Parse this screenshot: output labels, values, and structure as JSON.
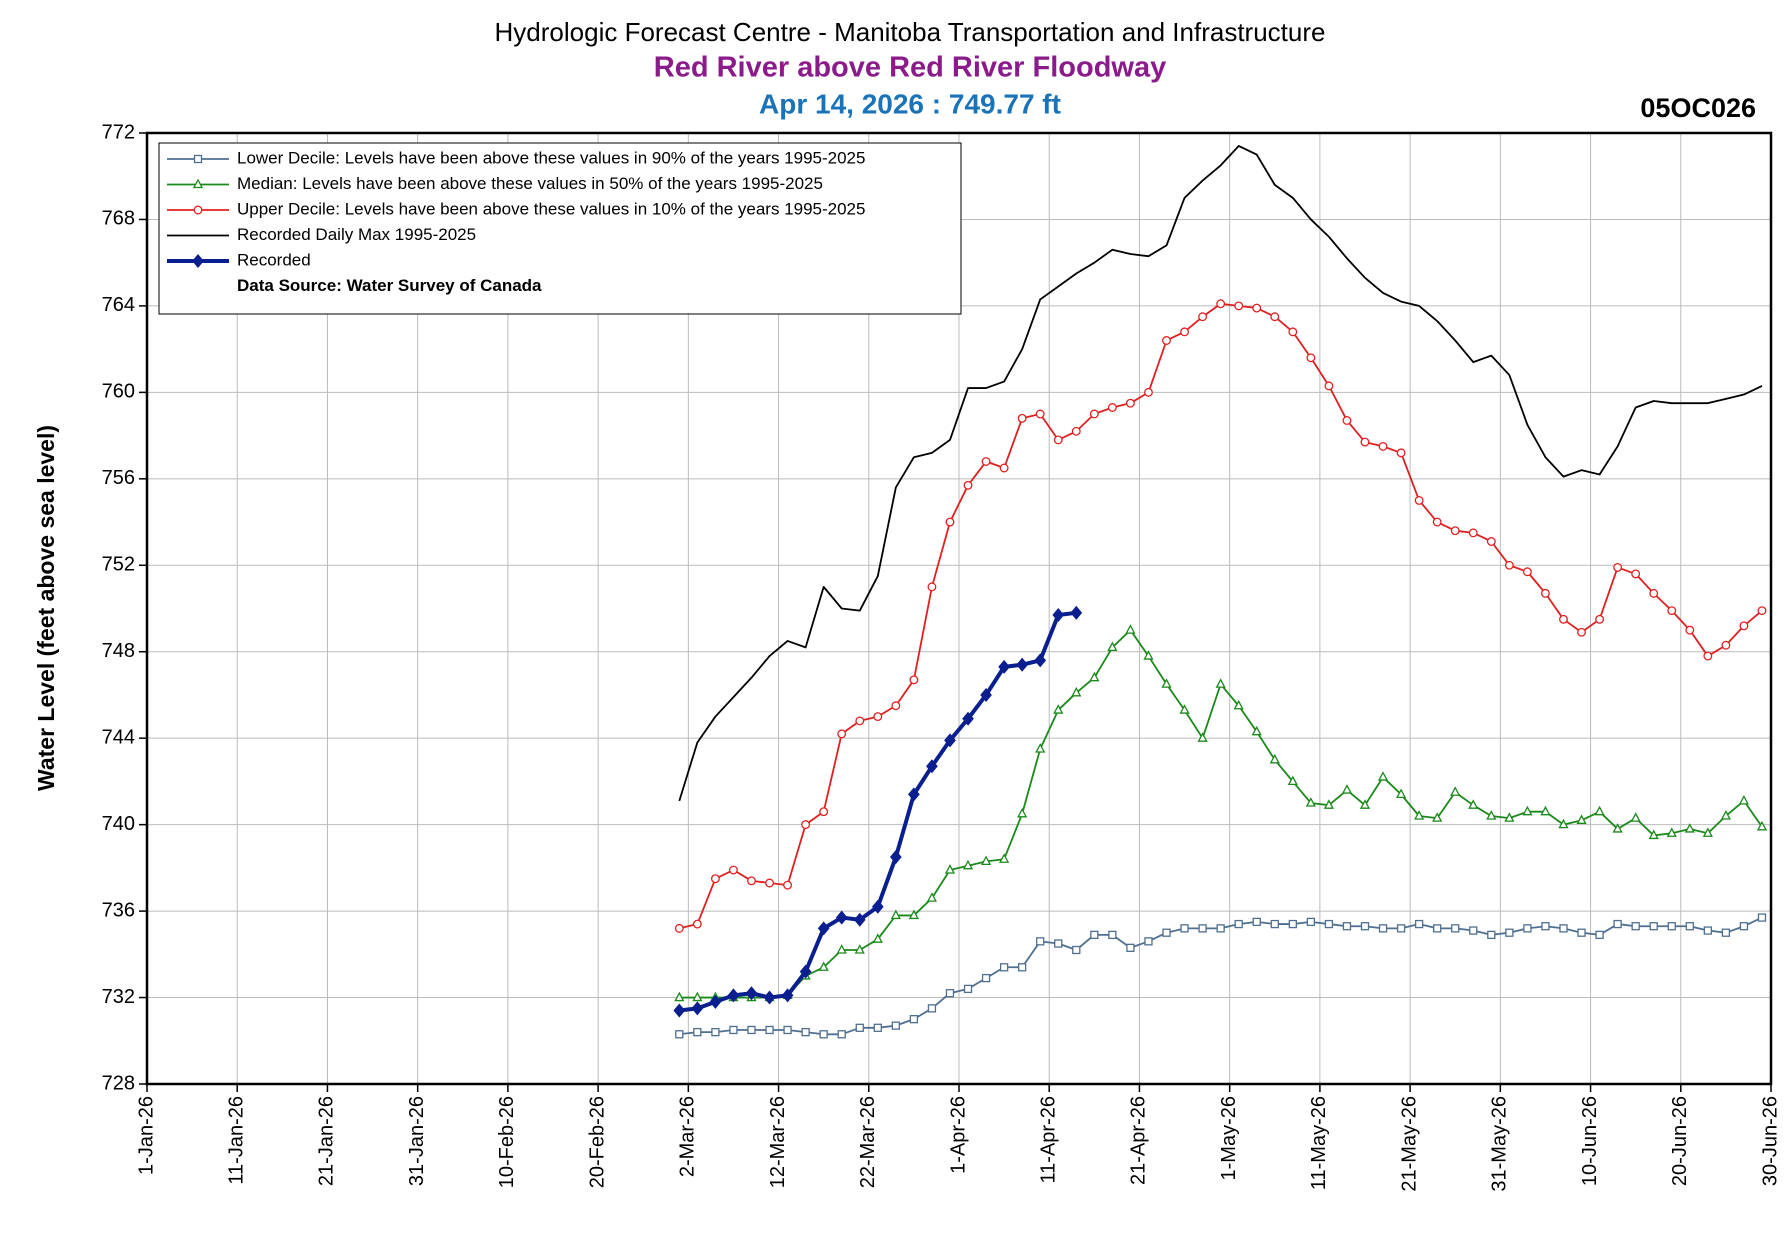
{
  "chart_data": {
    "type": "line",
    "title": "Hydrologic Forecast Centre - Manitoba Transportation and Infrastructure",
    "subtitle": "Red River above Red River Floodway",
    "current_reading": "Apr 14, 2026 : 749.77 ft",
    "station_id": "05OC026",
    "y_label": "Water Level (feet above sea level)",
    "legend_note": "Data Source: Water Survey of Canada",
    "legend_position": "upper left",
    "grid": true,
    "xlim": [
      "1-Jan-26",
      "30-Jun-26"
    ],
    "xticks": [
      "1-Jan-26",
      "11-Jan-26",
      "21-Jan-26",
      "31-Jan-26",
      "10-Feb-26",
      "20-Feb-26",
      "2-Mar-26",
      "12-Mar-26",
      "22-Mar-26",
      "1-Apr-26",
      "11-Apr-26",
      "21-Apr-26",
      "1-May-26",
      "11-May-26",
      "21-May-26",
      "31-May-26",
      "10-Jun-26",
      "20-Jun-26",
      "30-Jun-26"
    ],
    "ylim": [
      728,
      772
    ],
    "yticks": [
      728,
      732,
      736,
      740,
      744,
      748,
      752,
      756,
      760,
      764,
      768,
      772
    ],
    "x": [
      "1-Mar-26",
      "3-Mar-26",
      "5-Mar-26",
      "7-Mar-26",
      "9-Mar-26",
      "11-Mar-26",
      "13-Mar-26",
      "15-Mar-26",
      "17-Mar-26",
      "19-Mar-26",
      "21-Mar-26",
      "23-Mar-26",
      "25-Mar-26",
      "27-Mar-26",
      "29-Mar-26",
      "31-Mar-26",
      "2-Apr-26",
      "4-Apr-26",
      "6-Apr-26",
      "8-Apr-26",
      "10-Apr-26",
      "12-Apr-26",
      "14-Apr-26",
      "16-Apr-26",
      "18-Apr-26",
      "20-Apr-26",
      "22-Apr-26",
      "24-Apr-26",
      "26-Apr-26",
      "28-Apr-26",
      "30-Apr-26",
      "2-May-26",
      "4-May-26",
      "6-May-26",
      "8-May-26",
      "10-May-26",
      "12-May-26",
      "14-May-26",
      "16-May-26",
      "18-May-26",
      "20-May-26",
      "22-May-26",
      "24-May-26",
      "26-May-26",
      "28-May-26",
      "30-May-26",
      "1-Jun-26",
      "3-Jun-26",
      "5-Jun-26",
      "7-Jun-26",
      "9-Jun-26",
      "11-Jun-26",
      "13-Jun-26",
      "15-Jun-26",
      "17-Jun-26",
      "19-Jun-26",
      "21-Jun-26",
      "23-Jun-26",
      "25-Jun-26",
      "27-Jun-26",
      "29-Jun-26"
    ],
    "series": [
      {
        "name": "Lower Decile: Levels have been above these values in 90% of the years 1995-2025",
        "color": "#4f6f91",
        "marker": "square",
        "values": [
          730.3,
          730.4,
          730.4,
          730.5,
          730.5,
          730.5,
          730.5,
          730.4,
          730.3,
          730.3,
          730.6,
          730.6,
          730.7,
          731.0,
          731.5,
          732.2,
          732.4,
          732.9,
          733.4,
          733.4,
          734.6,
          734.5,
          734.2,
          734.9,
          734.9,
          734.3,
          734.6,
          735.0,
          735.2,
          735.2,
          735.2,
          735.4,
          735.5,
          735.4,
          735.4,
          735.5,
          735.4,
          735.3,
          735.3,
          735.2,
          735.2,
          735.4,
          735.2,
          735.2,
          735.1,
          734.9,
          735.0,
          735.2,
          735.3,
          735.2,
          735.0,
          734.9,
          735.4,
          735.3,
          735.3,
          735.3,
          735.3,
          735.1,
          735.0,
          735.3,
          735.7
        ]
      },
      {
        "name": "Median: Levels have been above these values in 50% of the years 1995-2025",
        "color": "#1a8a1a",
        "marker": "triangle",
        "values": [
          732.0,
          732.0,
          732.0,
          732.0,
          732.0,
          732.0,
          732.1,
          733.0,
          733.4,
          734.2,
          734.2,
          734.7,
          735.8,
          735.8,
          736.6,
          737.9,
          738.1,
          738.3,
          738.4,
          740.5,
          743.5,
          745.3,
          746.1,
          746.8,
          748.2,
          749.0,
          747.8,
          746.5,
          745.3,
          744.0,
          746.5,
          745.5,
          744.3,
          743.0,
          742.0,
          741.0,
          740.9,
          741.6,
          740.9,
          742.2,
          741.4,
          740.4,
          740.3,
          741.5,
          740.9,
          740.4,
          740.3,
          740.6,
          740.6,
          740.0,
          740.2,
          740.6,
          739.8,
          740.3,
          739.5,
          739.6,
          739.8,
          739.6,
          740.4,
          741.1,
          739.9
        ]
      },
      {
        "name": "Upper Decile: Levels have been above these values in 10% of the years 1995-2025",
        "color": "#e02020",
        "marker": "circle",
        "values": [
          735.2,
          735.4,
          737.5,
          737.9,
          737.4,
          737.3,
          737.2,
          740.0,
          740.6,
          744.2,
          744.8,
          745.0,
          745.5,
          746.7,
          751.0,
          754.0,
          755.7,
          756.8,
          756.5,
          758.8,
          759.0,
          757.8,
          758.2,
          759.0,
          759.3,
          759.5,
          760.0,
          762.4,
          762.8,
          763.5,
          764.1,
          764.0,
          763.9,
          763.5,
          762.8,
          761.6,
          760.3,
          758.7,
          757.7,
          757.5,
          757.2,
          755.0,
          754.0,
          753.6,
          753.5,
          753.1,
          752.0,
          751.7,
          750.7,
          749.5,
          748.9,
          749.5,
          751.9,
          751.6,
          750.7,
          749.9,
          749.0,
          747.8,
          748.3,
          749.2,
          749.9
        ]
      },
      {
        "name": "Recorded Daily Max 1995-2025",
        "color": "#000000",
        "marker": "none",
        "values": [
          741.1,
          743.8,
          745.0,
          745.9,
          746.8,
          747.8,
          748.5,
          748.2,
          751.0,
          750.0,
          749.9,
          751.5,
          755.6,
          757.0,
          757.2,
          757.8,
          760.2,
          760.2,
          760.5,
          762.0,
          764.3,
          764.9,
          765.5,
          766.0,
          766.6,
          766.4,
          766.3,
          766.8,
          769.0,
          769.8,
          770.5,
          771.4,
          771.0,
          769.6,
          769.0,
          768.0,
          767.2,
          766.2,
          765.3,
          764.6,
          764.2,
          764.0,
          763.3,
          762.4,
          761.4,
          761.7,
          760.8,
          758.5,
          757.0,
          756.1,
          756.4,
          756.2,
          757.5,
          759.3,
          759.6,
          759.5,
          759.5,
          759.5,
          759.7,
          759.9,
          760.3
        ]
      },
      {
        "name": "Recorded",
        "color": "#0a1f8f",
        "marker": "diamond",
        "values": [
          731.4,
          731.5,
          731.8,
          732.1,
          732.2,
          732.0,
          732.1,
          733.2,
          735.2,
          735.7,
          735.6,
          736.2,
          738.5,
          741.4,
          742.7,
          743.9,
          744.9,
          746.0,
          747.3,
          747.4,
          747.6,
          749.7,
          749.8,
          null,
          null,
          null,
          null,
          null,
          null,
          null,
          null,
          null,
          null,
          null,
          null,
          null,
          null,
          null,
          null,
          null,
          null,
          null,
          null,
          null,
          null,
          null,
          null,
          null,
          null,
          null,
          null,
          null,
          null,
          null,
          null,
          null,
          null,
          null,
          null,
          null,
          null
        ]
      }
    ]
  }
}
